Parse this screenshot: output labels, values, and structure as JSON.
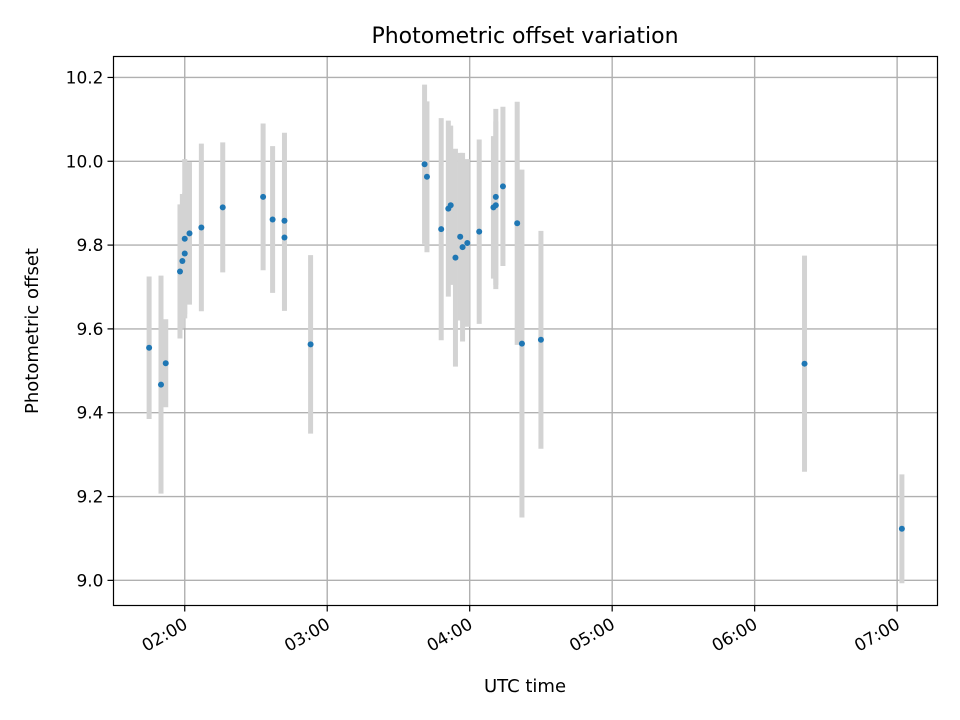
{
  "chart_data": {
    "type": "scatter",
    "title": "Photometric offset variation",
    "xlabel": "UTC time",
    "ylabel": "Photometric offset",
    "x_ticks": [
      "02:00",
      "03:00",
      "04:00",
      "05:00",
      "06:00",
      "07:00"
    ],
    "y_ticks": [
      "9.0",
      "9.2",
      "9.4",
      "9.6",
      "9.8",
      "10.0",
      "10.2"
    ],
    "xlim": [
      "01:30",
      "07:17"
    ],
    "ylim": [
      8.94,
      10.25
    ],
    "grid": true,
    "marker_color": "#1f77b4",
    "errorbar_color": "#d3d3d3",
    "points": [
      {
        "x": "01:45",
        "y": 9.555,
        "err": 0.17
      },
      {
        "x": "01:50",
        "y": 9.467,
        "err": 0.26
      },
      {
        "x": "01:52",
        "y": 9.518,
        "err": 0.105
      },
      {
        "x": "01:58",
        "y": 9.737,
        "err": 0.16
      },
      {
        "x": "01:59",
        "y": 9.762,
        "err": 0.16
      },
      {
        "x": "02:00",
        "y": 9.78,
        "err": 0.145
      },
      {
        "x": "02:00",
        "y": 9.815,
        "err": 0.19
      },
      {
        "x": "02:02",
        "y": 9.828,
        "err": 0.17
      },
      {
        "x": "02:07",
        "y": 9.842,
        "err": 0.2
      },
      {
        "x": "02:16",
        "y": 9.89,
        "err": 0.155
      },
      {
        "x": "02:33",
        "y": 9.915,
        "err": 0.175
      },
      {
        "x": "02:37",
        "y": 9.861,
        "err": 0.175
      },
      {
        "x": "02:42",
        "y": 9.858,
        "err": 0.21
      },
      {
        "x": "02:42",
        "y": 9.818,
        "err": 0.175
      },
      {
        "x": "02:53",
        "y": 9.563,
        "err": 0.213
      },
      {
        "x": "03:41",
        "y": 9.993,
        "err": 0.19
      },
      {
        "x": "03:42",
        "y": 9.963,
        "err": 0.18
      },
      {
        "x": "03:48",
        "y": 9.838,
        "err": 0.265
      },
      {
        "x": "03:51",
        "y": 9.887,
        "err": 0.21
      },
      {
        "x": "03:52",
        "y": 9.895,
        "err": 0.19
      },
      {
        "x": "03:54",
        "y": 9.77,
        "err": 0.26
      },
      {
        "x": "03:56",
        "y": 9.82,
        "err": 0.2
      },
      {
        "x": "03:57",
        "y": 9.795,
        "err": 0.225
      },
      {
        "x": "03:59",
        "y": 9.805,
        "err": 0.2
      },
      {
        "x": "04:04",
        "y": 9.832,
        "err": 0.22
      },
      {
        "x": "04:10",
        "y": 9.89,
        "err": 0.17
      },
      {
        "x": "04:11",
        "y": 9.895,
        "err": 0.2
      },
      {
        "x": "04:11",
        "y": 9.915,
        "err": 0.21
      },
      {
        "x": "04:14",
        "y": 9.94,
        "err": 0.19
      },
      {
        "x": "04:20",
        "y": 9.852,
        "err": 0.29
      },
      {
        "x": "04:22",
        "y": 9.565,
        "err": 0.415
      },
      {
        "x": "04:30",
        "y": 9.574,
        "err": 0.26
      },
      {
        "x": "06:21",
        "y": 9.517,
        "err": 0.258
      },
      {
        "x": "07:02",
        "y": 9.123,
        "err": 0.13
      }
    ]
  }
}
